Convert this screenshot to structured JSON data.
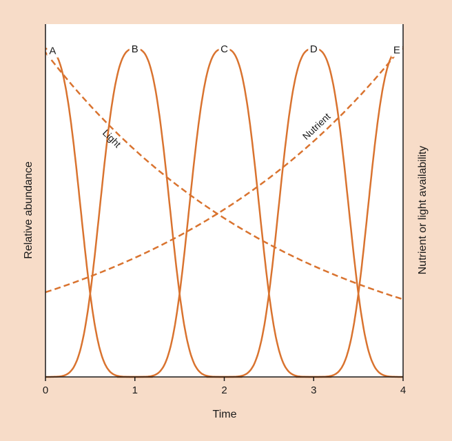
{
  "chart_data": {
    "type": "line",
    "xlabel": "Time",
    "ylabel": "Relative abundance",
    "y2label": "Nutrient or light availability",
    "xlim": [
      0,
      4
    ],
    "ylim": [
      0,
      1
    ],
    "x_ticks": [
      "0",
      "1",
      "2",
      "3",
      "4"
    ],
    "grid": false,
    "colors": {
      "line": "#d9732f",
      "background": "#f7dcc8",
      "plot": "#ffffff",
      "axis": "#1a1a1a"
    },
    "species": [
      {
        "name": "A",
        "peak_x": 0.0,
        "label_x": 0.08
      },
      {
        "name": "B",
        "peak_x": 1.0,
        "label_x": 1.0
      },
      {
        "name": "C",
        "peak_x": 2.0,
        "label_x": 2.0
      },
      {
        "name": "D",
        "peak_x": 3.0,
        "label_x": 3.0
      },
      {
        "name": "E",
        "peak_x": 4.0,
        "label_x": 3.93
      }
    ],
    "species_curve": {
      "peak_y": 0.93,
      "half_width": 0.45,
      "shape_exponent": 3
    },
    "resources": [
      {
        "name": "Light",
        "style": "dashed",
        "x": [
          0,
          4
        ],
        "y": [
          0.92,
          0.22
        ],
        "label_x": 0.8
      },
      {
        "name": "Nutrient",
        "style": "dashed",
        "x": [
          0,
          4
        ],
        "y": [
          0.24,
          0.94
        ],
        "label_x": 3.1
      }
    ]
  }
}
